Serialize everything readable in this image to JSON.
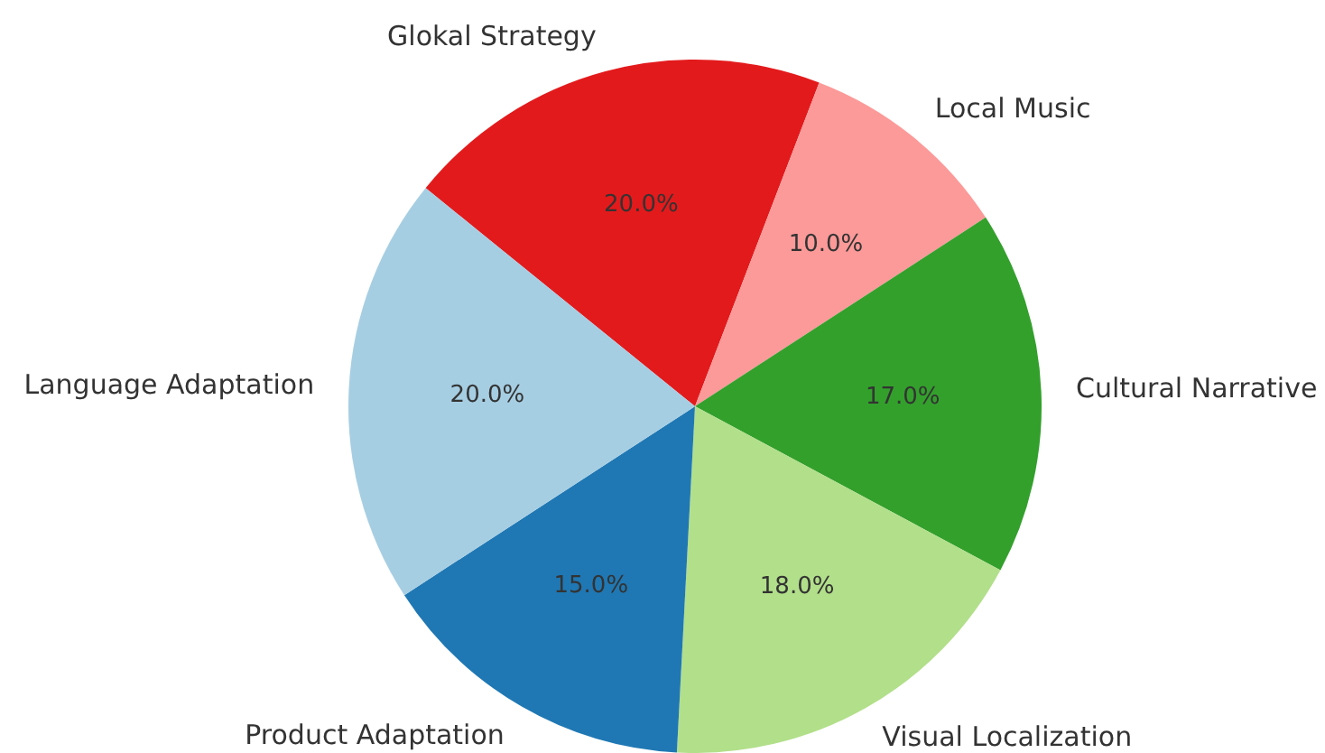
{
  "chart_data": {
    "type": "pie",
    "categories": [
      "Glokal Strategy",
      "Local Music",
      "Cultural Narrative",
      "Visual Localization",
      "Product Adaptation",
      "Language Adaptation"
    ],
    "values": [
      20,
      10,
      17,
      18,
      15,
      20
    ],
    "colors": [
      "#e31a1c",
      "#fb9a99",
      "#33a02c",
      "#b2df8a",
      "#1f78b4",
      "#a6cee3"
    ],
    "value_labels": [
      "20.0%",
      "10.0%",
      "17.0%",
      "18.0%",
      "15.0%",
      "20.0%"
    ],
    "legend": false
  }
}
